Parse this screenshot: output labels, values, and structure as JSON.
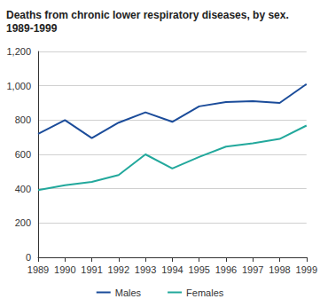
{
  "chart_data": {
    "type": "line",
    "title": "Deaths from chronic lower respiratory diseases, by sex.\n1989-1999",
    "categories": [
      "1989",
      "1990",
      "1991",
      "1992",
      "1993",
      "1994",
      "1995",
      "1996",
      "1997",
      "1998",
      "1999"
    ],
    "series": [
      {
        "name": "Males",
        "color": "#1b4c9a",
        "values": [
          720,
          800,
          695,
          785,
          845,
          790,
          880,
          905,
          910,
          900,
          1010
        ]
      },
      {
        "name": "Females",
        "color": "#22a89c",
        "values": [
          392,
          420,
          440,
          480,
          600,
          518,
          585,
          645,
          665,
          690,
          768
        ]
      }
    ],
    "ylim": [
      0,
      1200
    ],
    "yticks": [
      0,
      200,
      400,
      600,
      800,
      1000,
      1200
    ],
    "grid": true,
    "legend": "bottom"
  }
}
